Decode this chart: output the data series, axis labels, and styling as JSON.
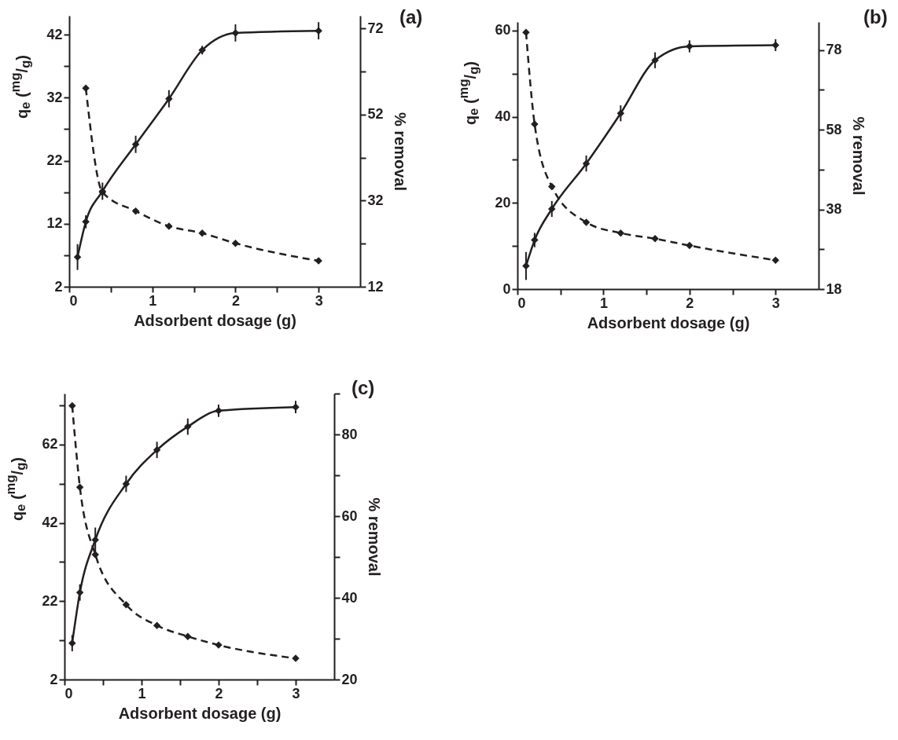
{
  "chart_data": [
    {
      "type": "line",
      "annotations": [
        "(a)"
      ],
      "xlabel": "Adsorbent dosage (g)",
      "ylabel": "q$_{e}$ ($^{mg}$/$_{g}$)",
      "y2label": "% removal",
      "marker": "diamond",
      "grid": false,
      "x": [
        0.1,
        0.2,
        0.4,
        0.8,
        1.2,
        1.6,
        2,
        3
      ],
      "xlim": [
        0,
        3.5
      ],
      "xticks": [
        0,
        {
          "value": 0.5,
          "label": null
        },
        1,
        {
          "value": 1.5,
          "label": null
        },
        2,
        {
          "value": 2.5,
          "label": null
        },
        3
      ],
      "ylim": [
        2,
        45
      ],
      "yticks": [
        2,
        {
          "value": 7,
          "label": null
        },
        12,
        {
          "value": 17,
          "label": null
        },
        22,
        {
          "value": 27,
          "label": null
        },
        32,
        {
          "value": 37,
          "label": null
        },
        42
      ],
      "y2lim": [
        12,
        75
      ],
      "y2ticks": [
        12,
        {
          "value": 22,
          "label": null
        },
        32,
        {
          "value": 42,
          "label": null
        },
        52,
        {
          "value": 62,
          "label": null
        },
        72
      ],
      "series": [
        {
          "color": "#231f20",
          "line_style": "dashed",
          "values": [
            null,
            33.5,
            17,
            14,
            11.6,
            10.5,
            8.9,
            6.1
          ]
        },
        {
          "color": "#231f20",
          "line_style": "solid",
          "axis": "y2",
          "values": [
            18.9,
            27.1,
            34.2,
            45.1,
            55.7,
            67,
            71,
            71.5
          ],
          "errors": [
            3,
            1.5,
            2,
            2,
            2,
            1,
            2,
            2
          ]
        }
      ]
    },
    {
      "type": "line",
      "annotations": [
        "(b)"
      ],
      "xlabel": "Adsorbent dosage (g)",
      "ylabel": "q$_{e}$ ($^{mg}$/$_{g}$)",
      "y2label": "% removal",
      "marker": "diamond",
      "grid": false,
      "x": [
        0.1,
        0.2,
        0.4,
        0.8,
        1.2,
        1.6,
        2,
        3
      ],
      "xlim": [
        0,
        3.5
      ],
      "xticks": [
        0,
        {
          "value": 0.5,
          "label": null
        },
        1,
        {
          "value": 1.5,
          "label": null
        },
        2,
        {
          "value": 2.5,
          "label": null
        },
        3
      ],
      "ylim": [
        0,
        62
      ],
      "yticks": [
        0,
        {
          "value": 10,
          "label": null
        },
        20,
        {
          "value": 30,
          "label": null
        },
        40,
        {
          "value": 50,
          "label": null
        },
        60
      ],
      "y2lim": [
        18,
        85
      ],
      "y2ticks": [
        18,
        {
          "value": 28,
          "label": null
        },
        38,
        {
          "value": 48,
          "label": null
        },
        58,
        {
          "value": 68,
          "label": null
        },
        78
      ],
      "series": [
        {
          "color": "#231f20",
          "line_style": "dashed",
          "values": [
            59.6,
            38.3,
            23.8,
            15.5,
            13,
            11.7,
            10.1,
            6.7
          ]
        },
        {
          "color": "#231f20",
          "line_style": "solid",
          "axis": "y2",
          "values": [
            23.8,
            30.3,
            38.1,
            49.5,
            62.1,
            75.4,
            78.9,
            79.2
          ],
          "errors": [
            3.5,
            1.8,
            2,
            2,
            2,
            2,
            1.5,
            1.5
          ]
        }
      ]
    },
    {
      "type": "line",
      "annotations": [
        "(c)"
      ],
      "xlabel": "Adsorbent dosage (g)",
      "ylabel": "q$_{e}$ ($^{mg}$/$_{g}$)",
      "y2label": "% removal",
      "marker": "diamond",
      "grid": false,
      "x": [
        0.1,
        0.2,
        0.4,
        0.8,
        1.2,
        1.6,
        2,
        3
      ],
      "xlim": [
        0,
        3.5
      ],
      "xticks": [
        0,
        {
          "value": 0.5,
          "label": null
        },
        1,
        {
          "value": 1.5,
          "label": null
        },
        2,
        {
          "value": 2.5,
          "label": null
        },
        3
      ],
      "ylim": [
        2,
        75
      ],
      "yticks": [
        2,
        {
          "value": 12,
          "label": null
        },
        22,
        {
          "value": 32,
          "label": null
        },
        42,
        {
          "value": 52,
          "label": null
        },
        62,
        {
          "value": 72,
          "label": null
        }
      ],
      "y2lim": [
        20,
        90
      ],
      "y2ticks": [
        20,
        {
          "value": 30,
          "label": null
        },
        40,
        {
          "value": 50,
          "label": null
        },
        60,
        {
          "value": 70,
          "label": null
        },
        80,
        {
          "value": 90,
          "label": null
        }
      ],
      "series": [
        {
          "color": "#231f20",
          "line_style": "dashed",
          "values": [
            71.9,
            51.1,
            33.9,
            21.1,
            15.8,
            13,
            10.8,
            7.4
          ]
        },
        {
          "color": "#231f20",
          "line_style": "solid",
          "axis": "y2",
          "values": [
            28.9,
            41.3,
            54.2,
            67.9,
            76.2,
            81.9,
            85.8,
            86.7
          ],
          "errors": [
            2,
            2,
            3,
            2,
            2,
            2,
            1.5,
            1.5
          ]
        }
      ]
    }
  ]
}
